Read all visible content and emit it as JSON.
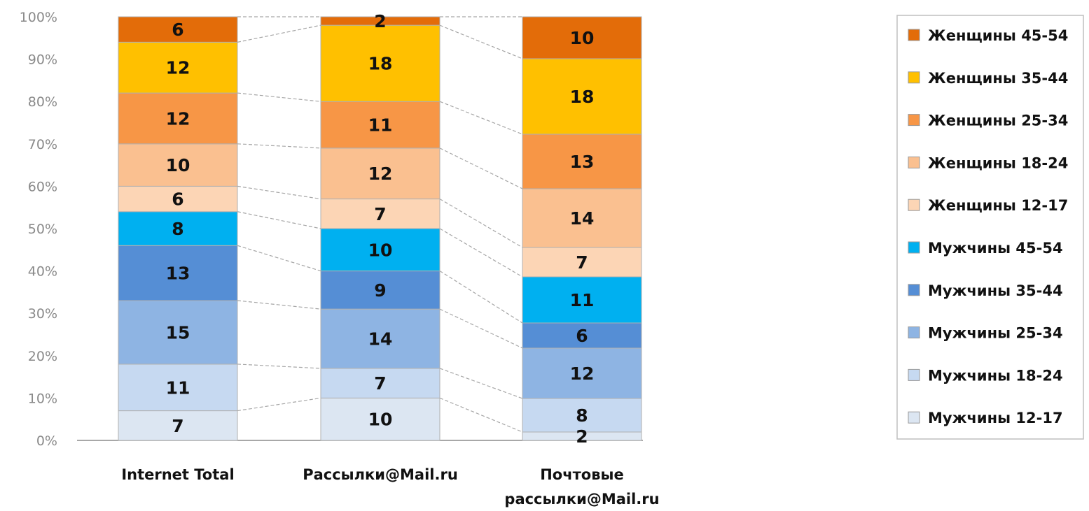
{
  "chart_data": {
    "type": "bar",
    "stacked": true,
    "percent": true,
    "categories": [
      [
        "Internet Total"
      ],
      [
        "Рассылки@Mail.ru"
      ],
      [
        "Почтовые",
        "рассылки@Mail.ru"
      ]
    ],
    "yticks": [
      "0%",
      "10%",
      "20%",
      "30%",
      "40%",
      "50%",
      "60%",
      "70%",
      "80%",
      "90%",
      "100%"
    ],
    "ylim": [
      0,
      100
    ],
    "legend_position": "right",
    "series": [
      {
        "name": "Мужчины 12-17",
        "color": "#dce6f2",
        "values": [
          7,
          10,
          2
        ]
      },
      {
        "name": "Мужчины 18-24",
        "color": "#c6d9f1",
        "values": [
          11,
          7,
          8
        ]
      },
      {
        "name": "Мужчины 25-34",
        "color": "#8eb4e3",
        "values": [
          15,
          14,
          12
        ]
      },
      {
        "name": "Мужчины 35-44",
        "color": "#558ed5",
        "values": [
          13,
          9,
          6
        ]
      },
      {
        "name": "Мужчины 45-54",
        "color": "#00b0f0",
        "values": [
          8,
          10,
          11
        ]
      },
      {
        "name": "Женщины 12-17",
        "color": "#fcd5b5",
        "values": [
          6,
          7,
          7
        ]
      },
      {
        "name": "Женщины 18-24",
        "color": "#fac090",
        "values": [
          10,
          12,
          14
        ]
      },
      {
        "name": "Женщины 25-34",
        "color": "#f79646",
        "values": [
          12,
          11,
          13
        ]
      },
      {
        "name": "Женщины 35-44",
        "color": "#ffc000",
        "values": [
          12,
          18,
          18
        ]
      },
      {
        "name": "Женщины 45-54",
        "color": "#e36c09",
        "values": [
          6,
          2,
          10
        ]
      }
    ]
  }
}
